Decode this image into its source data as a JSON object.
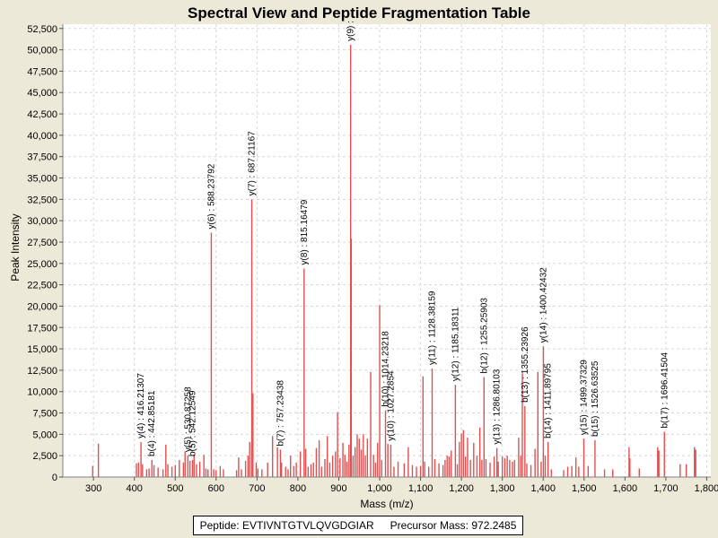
{
  "chart_data": {
    "type": "bar",
    "title": "Spectral View and Peptide Fragmentation Table",
    "xlabel": "Mass (m/z)",
    "ylabel": "Peak Intensity",
    "xlim": [
      225,
      1810
    ],
    "ylim": [
      0,
      53000
    ],
    "x_ticks": [
      "300",
      "400",
      "500",
      "600",
      "700",
      "800",
      "900",
      "1,000",
      "1,100",
      "1,200",
      "1,300",
      "1,400",
      "1,500",
      "1,600",
      "1,700",
      "1,800"
    ],
    "x_tick_values": [
      300,
      400,
      500,
      600,
      700,
      800,
      900,
      1000,
      1100,
      1200,
      1300,
      1400,
      1500,
      1600,
      1700,
      1800
    ],
    "y_ticks": [
      "0",
      "2,500",
      "5,000",
      "7,500",
      "10,000",
      "12,500",
      "15,000",
      "17,500",
      "20,000",
      "22,500",
      "25,000",
      "27,500",
      "30,000",
      "32,500",
      "35,000",
      "37,500",
      "40,000",
      "42,500",
      "45,000",
      "47,500",
      "50,000",
      "52,500"
    ],
    "y_tick_values": [
      0,
      2500,
      5000,
      7500,
      10000,
      12500,
      15000,
      17500,
      20000,
      22500,
      25000,
      27500,
      30000,
      32500,
      35000,
      37500,
      40000,
      42500,
      45000,
      47500,
      50000,
      52500
    ],
    "grid": true,
    "bar_color": "#e05050",
    "peaks": [
      [
        298,
        1300
      ],
      [
        312,
        3900
      ],
      [
        405,
        1600
      ],
      [
        410,
        1700
      ],
      [
        416.21,
        4100
      ],
      [
        420,
        1500
      ],
      [
        430,
        900
      ],
      [
        436,
        1000
      ],
      [
        442.85,
        2000
      ],
      [
        448,
        1400
      ],
      [
        458,
        1100
      ],
      [
        470,
        900
      ],
      [
        477,
        3800
      ],
      [
        482,
        1500
      ],
      [
        492,
        1200
      ],
      [
        500,
        1400
      ],
      [
        510,
        2000
      ],
      [
        520,
        1700
      ],
      [
        524,
        3000
      ],
      [
        530.87,
        2500
      ],
      [
        536,
        1900
      ],
      [
        542.13,
        2000
      ],
      [
        546,
        2600
      ],
      [
        552,
        1500
      ],
      [
        560,
        1800
      ],
      [
        570,
        2600
      ],
      [
        575,
        1000
      ],
      [
        580,
        900
      ],
      [
        588.24,
        28600
      ],
      [
        594,
        900
      ],
      [
        600,
        800
      ],
      [
        610,
        1300
      ],
      [
        618,
        900
      ],
      [
        650,
        800
      ],
      [
        655,
        2300
      ],
      [
        662,
        900
      ],
      [
        672,
        1900
      ],
      [
        678,
        2500
      ],
      [
        682,
        4100
      ],
      [
        687.21,
        32500
      ],
      [
        690,
        9800
      ],
      [
        698,
        1700
      ],
      [
        702,
        1000
      ],
      [
        712,
        900
      ],
      [
        726,
        1700
      ],
      [
        738,
        4800
      ],
      [
        750,
        3500
      ],
      [
        757.23,
        3200
      ],
      [
        760,
        1700
      ],
      [
        770,
        1200
      ],
      [
        776,
        900
      ],
      [
        782,
        2500
      ],
      [
        790,
        1300
      ],
      [
        796,
        1700
      ],
      [
        806,
        3000
      ],
      [
        815.16,
        24400
      ],
      [
        819,
        3300
      ],
      [
        825,
        1200
      ],
      [
        832,
        1500
      ],
      [
        838,
        1700
      ],
      [
        845,
        3400
      ],
      [
        852,
        4300
      ],
      [
        858,
        1200
      ],
      [
        866,
        2100
      ],
      [
        872,
        4800
      ],
      [
        878,
        1700
      ],
      [
        885,
        2500
      ],
      [
        892,
        3000
      ],
      [
        897,
        7600
      ],
      [
        903,
        2200
      ],
      [
        910,
        4000
      ],
      [
        915,
        2600
      ],
      [
        920,
        1800
      ],
      [
        925,
        3800
      ],
      [
        929,
        50600
      ],
      [
        930.5,
        27900
      ],
      [
        935,
        2500
      ],
      [
        940,
        3500
      ],
      [
        945,
        5000
      ],
      [
        950,
        4500
      ],
      [
        955,
        3200
      ],
      [
        960,
        5000
      ],
      [
        965,
        2500
      ],
      [
        970,
        4500
      ],
      [
        978,
        12300
      ],
      [
        985,
        2600
      ],
      [
        990,
        1700
      ],
      [
        995,
        4000
      ],
      [
        1000,
        20100
      ],
      [
        1005,
        2000
      ],
      [
        1014.23,
        7800
      ],
      [
        1020,
        3900
      ],
      [
        1027.29,
        3800
      ],
      [
        1035,
        1200
      ],
      [
        1045,
        1800
      ],
      [
        1060,
        1600
      ],
      [
        1070,
        3500
      ],
      [
        1080,
        1400
      ],
      [
        1090,
        1200
      ],
      [
        1100,
        1300
      ],
      [
        1106,
        11800
      ],
      [
        1110,
        1800
      ],
      [
        1120,
        1200
      ],
      [
        1128.38,
        12700
      ],
      [
        1135,
        2100
      ],
      [
        1145,
        1600
      ],
      [
        1155,
        1400
      ],
      [
        1160,
        2000
      ],
      [
        1165,
        2500
      ],
      [
        1170,
        2400
      ],
      [
        1175,
        3100
      ],
      [
        1185.18,
        10800
      ],
      [
        1190,
        1500
      ],
      [
        1195,
        4100
      ],
      [
        1200,
        5100
      ],
      [
        1205,
        5500
      ],
      [
        1210,
        2400
      ],
      [
        1215,
        4600
      ],
      [
        1222,
        2000
      ],
      [
        1230,
        4000
      ],
      [
        1238,
        2500
      ],
      [
        1245,
        5800
      ],
      [
        1250,
        2000
      ],
      [
        1255.26,
        11700
      ],
      [
        1260,
        2100
      ],
      [
        1270,
        1700
      ],
      [
        1280,
        2400
      ],
      [
        1286.8,
        3400
      ],
      [
        1290,
        1800
      ],
      [
        1300,
        2400
      ],
      [
        1306,
        2200
      ],
      [
        1312,
        2500
      ],
      [
        1318,
        2000
      ],
      [
        1325,
        1800
      ],
      [
        1330,
        2000
      ],
      [
        1340,
        4600
      ],
      [
        1345,
        2500
      ],
      [
        1349,
        12100
      ],
      [
        1355.24,
        8300
      ],
      [
        1360,
        1600
      ],
      [
        1370,
        1400
      ],
      [
        1380,
        3300
      ],
      [
        1387,
        12300
      ],
      [
        1395,
        1800
      ],
      [
        1400.42,
        15300
      ],
      [
        1405,
        2500
      ],
      [
        1411.9,
        4100
      ],
      [
        1420,
        900
      ],
      [
        1450,
        800
      ],
      [
        1460,
        1200
      ],
      [
        1470,
        1300
      ],
      [
        1480,
        2300
      ],
      [
        1487,
        1200
      ],
      [
        1499.37,
        4500
      ],
      [
        1510,
        1300
      ],
      [
        1526.64,
        4300
      ],
      [
        1550,
        900
      ],
      [
        1570,
        900
      ],
      [
        1610,
        3500
      ],
      [
        1612,
        2200
      ],
      [
        1635,
        1000
      ],
      [
        1680,
        3500
      ],
      [
        1683,
        3100
      ],
      [
        1696.42,
        5300
      ],
      [
        1735,
        1500
      ],
      [
        1750,
        1500
      ],
      [
        1770,
        3500
      ],
      [
        1773,
        3200
      ]
    ],
    "annotations": [
      {
        "text": "y(4) : 416.21307",
        "mz": 416.21,
        "intensity": 4100
      },
      {
        "text": "b(4) : 442.85181",
        "mz": 442.85,
        "intensity": 2000
      },
      {
        "text": "y(5) : 530.87258",
        "mz": 530.87,
        "intensity": 2500
      },
      {
        "text": "b(5) : 542.12549",
        "mz": 542.13,
        "intensity": 2000
      },
      {
        "text": "y(6) : 588.23792",
        "mz": 588.24,
        "intensity": 28600
      },
      {
        "text": "y(7) : 687.21167",
        "mz": 687.21,
        "intensity": 32500
      },
      {
        "text": "b(7) : 757.23438",
        "mz": 757.23,
        "intensity": 3200
      },
      {
        "text": "y(8) : 815.16479",
        "mz": 815.16,
        "intensity": 24400
      },
      {
        "text": "y(9) :",
        "mz": 929,
        "intensity": 50600
      },
      {
        "text": "b(10) : 1014.23218",
        "mz": 1014.23,
        "intensity": 7800
      },
      {
        "text": "y(10) : 1027.2854",
        "mz": 1027.29,
        "intensity": 3800
      },
      {
        "text": "y(11) : 1128.38159",
        "mz": 1128.38,
        "intensity": 12700
      },
      {
        "text": "y(12) : 1185.18311",
        "mz": 1185.18,
        "intensity": 10800
      },
      {
        "text": "b(12) : 1255.25903",
        "mz": 1255.26,
        "intensity": 11700
      },
      {
        "text": "y(13) : 1286.80103",
        "mz": 1286.8,
        "intensity": 3400
      },
      {
        "text": "b(13) : 1355.23926",
        "mz": 1355.24,
        "intensity": 8300
      },
      {
        "text": "y(14) : 1400.42432",
        "mz": 1400.42,
        "intensity": 15300
      },
      {
        "text": "b(14) : 1411.89795",
        "mz": 1411.9,
        "intensity": 4100
      },
      {
        "text": "y(15) : 1499.37329",
        "mz": 1499.37,
        "intensity": 4500
      },
      {
        "text": "b(15) : 1526.63525",
        "mz": 1526.64,
        "intensity": 4300
      },
      {
        "text": "b(17) : 1696.41504",
        "mz": 1696.42,
        "intensity": 5300
      }
    ]
  },
  "info": {
    "peptide": "Peptide: EVTIVNTGTVLQVGDGIAR",
    "precursor": "Precursor Mass: 972.2485"
  }
}
